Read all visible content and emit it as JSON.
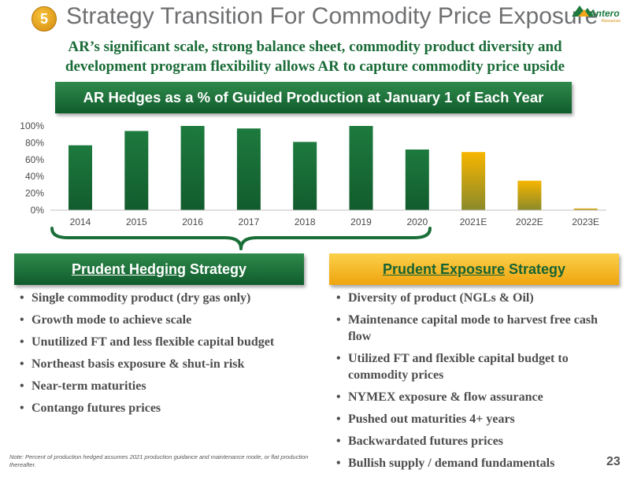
{
  "header": {
    "badge": "5",
    "title": "Strategy Transition For Commodity Price Exposure",
    "logo": "Antero",
    "logo_sub": "Resources"
  },
  "subtitle": {
    "line1": "AR’s significant scale, strong balance sheet, commodity product diversity and",
    "line2": "development program flexibility allows AR to capture commodity price upside"
  },
  "chart_banner": "AR Hedges as a % of Guided Production at January 1 of Each Year",
  "chart_data": {
    "type": "bar",
    "title": "AR Hedges as a % of Guided Production at January 1 of Each Year",
    "categories": [
      "2014",
      "2015",
      "2016",
      "2017",
      "2018",
      "2019",
      "2020",
      "2021E",
      "2022E",
      "2023E"
    ],
    "values": [
      77,
      94,
      100,
      97,
      81,
      100,
      72,
      69,
      35,
      2
    ],
    "ylim": [
      0,
      100
    ],
    "yticks": [
      "0%",
      "20%",
      "40%",
      "60%",
      "80%",
      "100%"
    ],
    "ytick_values": [
      0,
      20,
      40,
      60,
      80,
      100
    ],
    "grid": false,
    "legend": "none",
    "colors": {
      "actual": "#1a6e38",
      "estimate_top": "#f7b500",
      "estimate_bottom": "#8a8a2a"
    }
  },
  "hedging": {
    "banner_underlined": "Prudent Hedging",
    "banner_rest": " Strategy",
    "items": [
      "Single commodity product (dry gas only)",
      "Growth mode to achieve scale",
      "Unutilized FT and less flexible capital budget",
      "Northeast basis exposure & shut-in risk",
      "Near-term maturities",
      "Contango futures prices"
    ]
  },
  "exposure": {
    "banner_underlined": "Prudent Exposure",
    "banner_rest": " Strategy",
    "items": [
      "Diversity of product (NGLs & Oil)",
      "Maintenance capital mode to harvest free cash flow",
      "Utilized FT and flexible capital budget to commodity prices",
      "NYMEX exposure & flow assurance",
      "Pushed out maturities 4+ years",
      "Backwardated futures prices",
      "Bullish supply / demand fundamentals"
    ]
  },
  "footnote": "Note:  Percent of production hedged assumes 2021 production guidance and maintenance mode, or flat production thereafter.",
  "page_number": "23"
}
